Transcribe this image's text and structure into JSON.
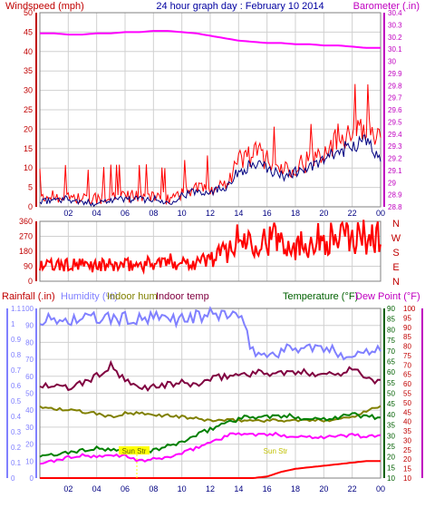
{
  "header": {
    "windspeed_label": "Windspeed (mph)",
    "title": "24 hour graph day : February 10 2014",
    "barometer_label": "Barometer (.in)"
  },
  "lower_header": {
    "rainfall_label": "Rainfall (.in)",
    "humidity_label": "Humidity (%)",
    "indoor_hum_label": "Indoor hum",
    "indoor_temp_label": "Indoor temp",
    "temperature_label": "Temperature (°F)",
    "dewpoint_label": "Dew Point (°F)"
  },
  "annotations": {
    "marker_1": "Sun Str",
    "marker_2": "Sun Str"
  },
  "colors": {
    "windspeed": "#ff0000",
    "wind_avg": "#000080",
    "barometer": "#ff00ff",
    "wind_direction": "#ff0000",
    "rainfall": "#ff0000",
    "humidity": "#8080ff",
    "indoor_hum": "#808000",
    "indoor_temp": "#800040",
    "temperature": "#008000",
    "dewpoint": "#ff00ff",
    "axis_blue": "#0000c0",
    "axis_green": "#006000",
    "axis_red": "#c00000",
    "axis_magenta": "#c000c0",
    "grid": "#d0d0d0",
    "marker": "#ffff00"
  },
  "chart_data": [
    {
      "type": "line",
      "title": "24 hour graph day : February 10 2014",
      "x_tick_labels": [
        "02",
        "04",
        "06",
        "08",
        "10",
        "12",
        "14",
        "16",
        "18",
        "20",
        "22",
        "00"
      ],
      "y_left": {
        "label": "Windspeed (mph)",
        "ylim": [
          0,
          50
        ],
        "tick_labels": [
          "0",
          "5",
          "10",
          "15",
          "20",
          "25",
          "30",
          "35",
          "40",
          "45",
          "50"
        ]
      },
      "y_right": {
        "label": "Barometer (.in)",
        "ylim": [
          28.8,
          30.4
        ],
        "tick_labels": [
          "28.8",
          "28.9",
          "29",
          "29.1",
          "29.2",
          "29.3",
          "29.4",
          "29.5",
          "29.6",
          "29.7",
          "29.8",
          "29.9",
          "30",
          "30.1",
          "30.2",
          "30.3",
          "30.4"
        ]
      },
      "grid": true,
      "x_hours": [
        0,
        1,
        2,
        3,
        4,
        5,
        6,
        7,
        8,
        9,
        10,
        11,
        12,
        13,
        14,
        15,
        16,
        17,
        18,
        19,
        20,
        21,
        22,
        23,
        24
      ],
      "series": [
        {
          "name": "Windspeed (mph)",
          "axis": "left",
          "values": [
            2,
            3,
            3,
            2,
            2,
            3,
            3,
            3,
            3,
            2,
            4,
            5,
            5,
            6,
            12,
            14,
            13,
            10,
            11,
            12,
            15,
            18,
            21,
            22,
            16
          ]
        },
        {
          "name": "",
          "axis": "left",
          "values": [
            1,
            2,
            2,
            1,
            1,
            2,
            2,
            2,
            2,
            1,
            3,
            4,
            4,
            5,
            9,
            11,
            10,
            8,
            9,
            10,
            12,
            14,
            16,
            17,
            12
          ]
        },
        {
          "name": "Barometer (.in)",
          "axis": "right",
          "values": [
            30.23,
            30.23,
            30.22,
            30.22,
            30.23,
            30.23,
            30.24,
            30.24,
            30.25,
            30.25,
            30.24,
            30.23,
            30.21,
            30.19,
            30.17,
            30.16,
            30.15,
            30.15,
            30.14,
            30.14,
            30.13,
            30.13,
            30.12,
            30.11,
            30.11
          ]
        }
      ]
    },
    {
      "type": "line",
      "x_tick_labels": [
        "02",
        "04",
        "06",
        "08",
        "10",
        "12",
        "14",
        "16",
        "18",
        "20",
        "22",
        "00"
      ],
      "y_left": {
        "ylim": [
          0,
          360
        ],
        "tick_labels": [
          "0",
          "90",
          "180",
          "270",
          "360"
        ]
      },
      "y_right": {
        "tick_labels": [
          "N",
          "W",
          "S",
          "E",
          "N"
        ]
      },
      "grid": true,
      "x_hours": [
        0,
        1,
        2,
        3,
        4,
        5,
        6,
        7,
        8,
        9,
        10,
        11,
        12,
        13,
        14,
        15,
        16,
        17,
        18,
        19,
        20,
        21,
        22,
        23,
        24
      ],
      "series": [
        {
          "name": "",
          "values": [
            95,
            95,
            95,
            95,
            95,
            95,
            95,
            100,
            110,
            115,
            120,
            115,
            135,
            175,
            250,
            255,
            250,
            260,
            210,
            245,
            255,
            260,
            260,
            270,
            265
          ]
        }
      ]
    },
    {
      "type": "line",
      "x_tick_labels": [
        "02",
        "04",
        "06",
        "08",
        "10",
        "12",
        "14",
        "16",
        "18",
        "20",
        "22",
        "00"
      ],
      "y_left_outer": {
        "label": "Rainfall (.in)",
        "ylim": [
          0,
          1.1
        ],
        "tick_labels": [
          "0",
          "0.1",
          "0.2",
          "0.3",
          "0.4",
          "0.5",
          "0.6",
          "0.7",
          "0.8",
          "0.9",
          "1",
          "1.1"
        ]
      },
      "y_left_inner": {
        "label": "Humidity (%)",
        "ylim": [
          0,
          100
        ],
        "tick_labels": [
          "0",
          "10",
          "20",
          "30",
          "40",
          "50",
          "60",
          "70",
          "80",
          "90",
          "100"
        ]
      },
      "y_right_inner": {
        "label": "Temperature (°F)",
        "ylim": [
          10,
          90
        ],
        "tick_labels": [
          "10",
          "15",
          "20",
          "25",
          "30",
          "35",
          "40",
          "45",
          "50",
          "55",
          "60",
          "65",
          "70",
          "75",
          "80",
          "85",
          "90"
        ]
      },
      "y_right_outer": {
        "label": "Dew Point (°F)",
        "ylim": [
          10,
          100
        ],
        "tick_labels": [
          "10",
          "15",
          "20",
          "25",
          "30",
          "35",
          "40",
          "45",
          "50",
          "55",
          "60",
          "65",
          "70",
          "75",
          "80",
          "85",
          "90",
          "95",
          "100"
        ]
      },
      "grid": true,
      "x_hours": [
        0,
        1,
        2,
        3,
        4,
        5,
        6,
        7,
        8,
        9,
        10,
        11,
        12,
        13,
        14,
        15,
        16,
        17,
        18,
        19,
        20,
        21,
        22,
        23,
        24
      ],
      "series": [
        {
          "name": "Rainfall (.in)",
          "axis": "left_outer",
          "values": [
            0,
            0,
            0,
            0,
            0,
            0,
            0,
            0,
            0,
            0,
            0,
            0,
            0,
            0,
            0,
            0,
            0.01,
            0.04,
            0.06,
            0.07,
            0.08,
            0.09,
            0.1,
            0.11,
            0.11
          ]
        },
        {
          "name": "Humidity (%)",
          "axis": "left_inner",
          "values": [
            93,
            93,
            93,
            94,
            94,
            94,
            94,
            93,
            94,
            94,
            94,
            95,
            96,
            97,
            96,
            75,
            72,
            75,
            77,
            77,
            76,
            74,
            72,
            75,
            78
          ]
        },
        {
          "name": "Indoor hum",
          "axis": "left_inner",
          "values": [
            42,
            41,
            40,
            39,
            38,
            36,
            38,
            38,
            37,
            37,
            36,
            35,
            34,
            34,
            34,
            34,
            34,
            34,
            34,
            34,
            34,
            35,
            36,
            40,
            42
          ]
        },
        {
          "name": "Indoor temp",
          "axis": "left_inner",
          "values": [
            55,
            54,
            53,
            56,
            60,
            66,
            57,
            53,
            54,
            55,
            56,
            55,
            58,
            60,
            61,
            62,
            62,
            62,
            62,
            62,
            62,
            61,
            66,
            58,
            57
          ]
        },
        {
          "name": "Temperature (°F)",
          "axis": "right_inner",
          "values": [
            20,
            21,
            22,
            23,
            24,
            23,
            23,
            22,
            23,
            25,
            27,
            30,
            33,
            36,
            38,
            39,
            39,
            39,
            39,
            38,
            38,
            39,
            40,
            39,
            39
          ]
        },
        {
          "name": "Dew Point (°F)",
          "axis": "right_outer",
          "values": [
            18,
            19,
            21,
            22,
            21,
            22,
            22,
            19,
            20,
            21,
            23,
            26,
            29,
            32,
            34,
            33,
            33,
            33,
            32,
            32,
            32,
            32,
            33,
            32,
            32
          ]
        }
      ]
    }
  ]
}
